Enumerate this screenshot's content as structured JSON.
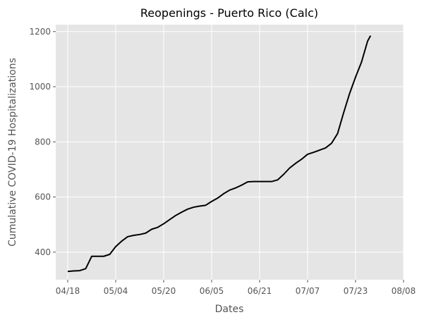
{
  "chart_data": {
    "type": "line",
    "title": "Reopenings - Puerto Rico (Calc)",
    "x_label": "Dates",
    "y_label": "Cumulative COVID-19 Hospitalizations",
    "x": [
      "04/18",
      "04/20",
      "04/22",
      "04/24",
      "04/26",
      "04/28",
      "04/30",
      "05/02",
      "05/04",
      "05/06",
      "05/08",
      "05/10",
      "05/12",
      "05/14",
      "05/16",
      "05/18",
      "05/20",
      "05/22",
      "05/24",
      "05/26",
      "05/28",
      "05/30",
      "06/01",
      "06/03",
      "06/05",
      "06/07",
      "06/09",
      "06/11",
      "06/13",
      "06/15",
      "06/17",
      "06/19",
      "06/21",
      "06/23",
      "06/25",
      "06/27",
      "06/29",
      "07/01",
      "07/03",
      "07/05",
      "07/07",
      "07/09",
      "07/11",
      "07/13",
      "07/15",
      "07/17",
      "07/19",
      "07/21",
      "07/23",
      "07/25",
      "07/27",
      "07/28"
    ],
    "series": [
      {
        "color": "#000000",
        "values": [
          330,
          332,
          333,
          340,
          385,
          385,
          385,
          392,
          420,
          440,
          456,
          461,
          464,
          469,
          483,
          490,
          503,
          518,
          533,
          545,
          556,
          563,
          567,
          570,
          584,
          596,
          612,
          625,
          633,
          643,
          655,
          656,
          656,
          656,
          656,
          662,
          682,
          705,
          722,
          737,
          755,
          762,
          770,
          778,
          795,
          830,
          905,
          975,
          1035,
          1090,
          1165,
          1185
        ]
      }
    ],
    "xlim": [
      "04/14",
      "08/08"
    ],
    "xticks": [
      "04/18",
      "05/04",
      "05/20",
      "06/05",
      "06/21",
      "07/07",
      "07/23",
      "08/08"
    ],
    "ylim": [
      300,
      1225
    ],
    "yticks": [
      400,
      600,
      800,
      1000,
      1200
    ],
    "grid": true
  }
}
